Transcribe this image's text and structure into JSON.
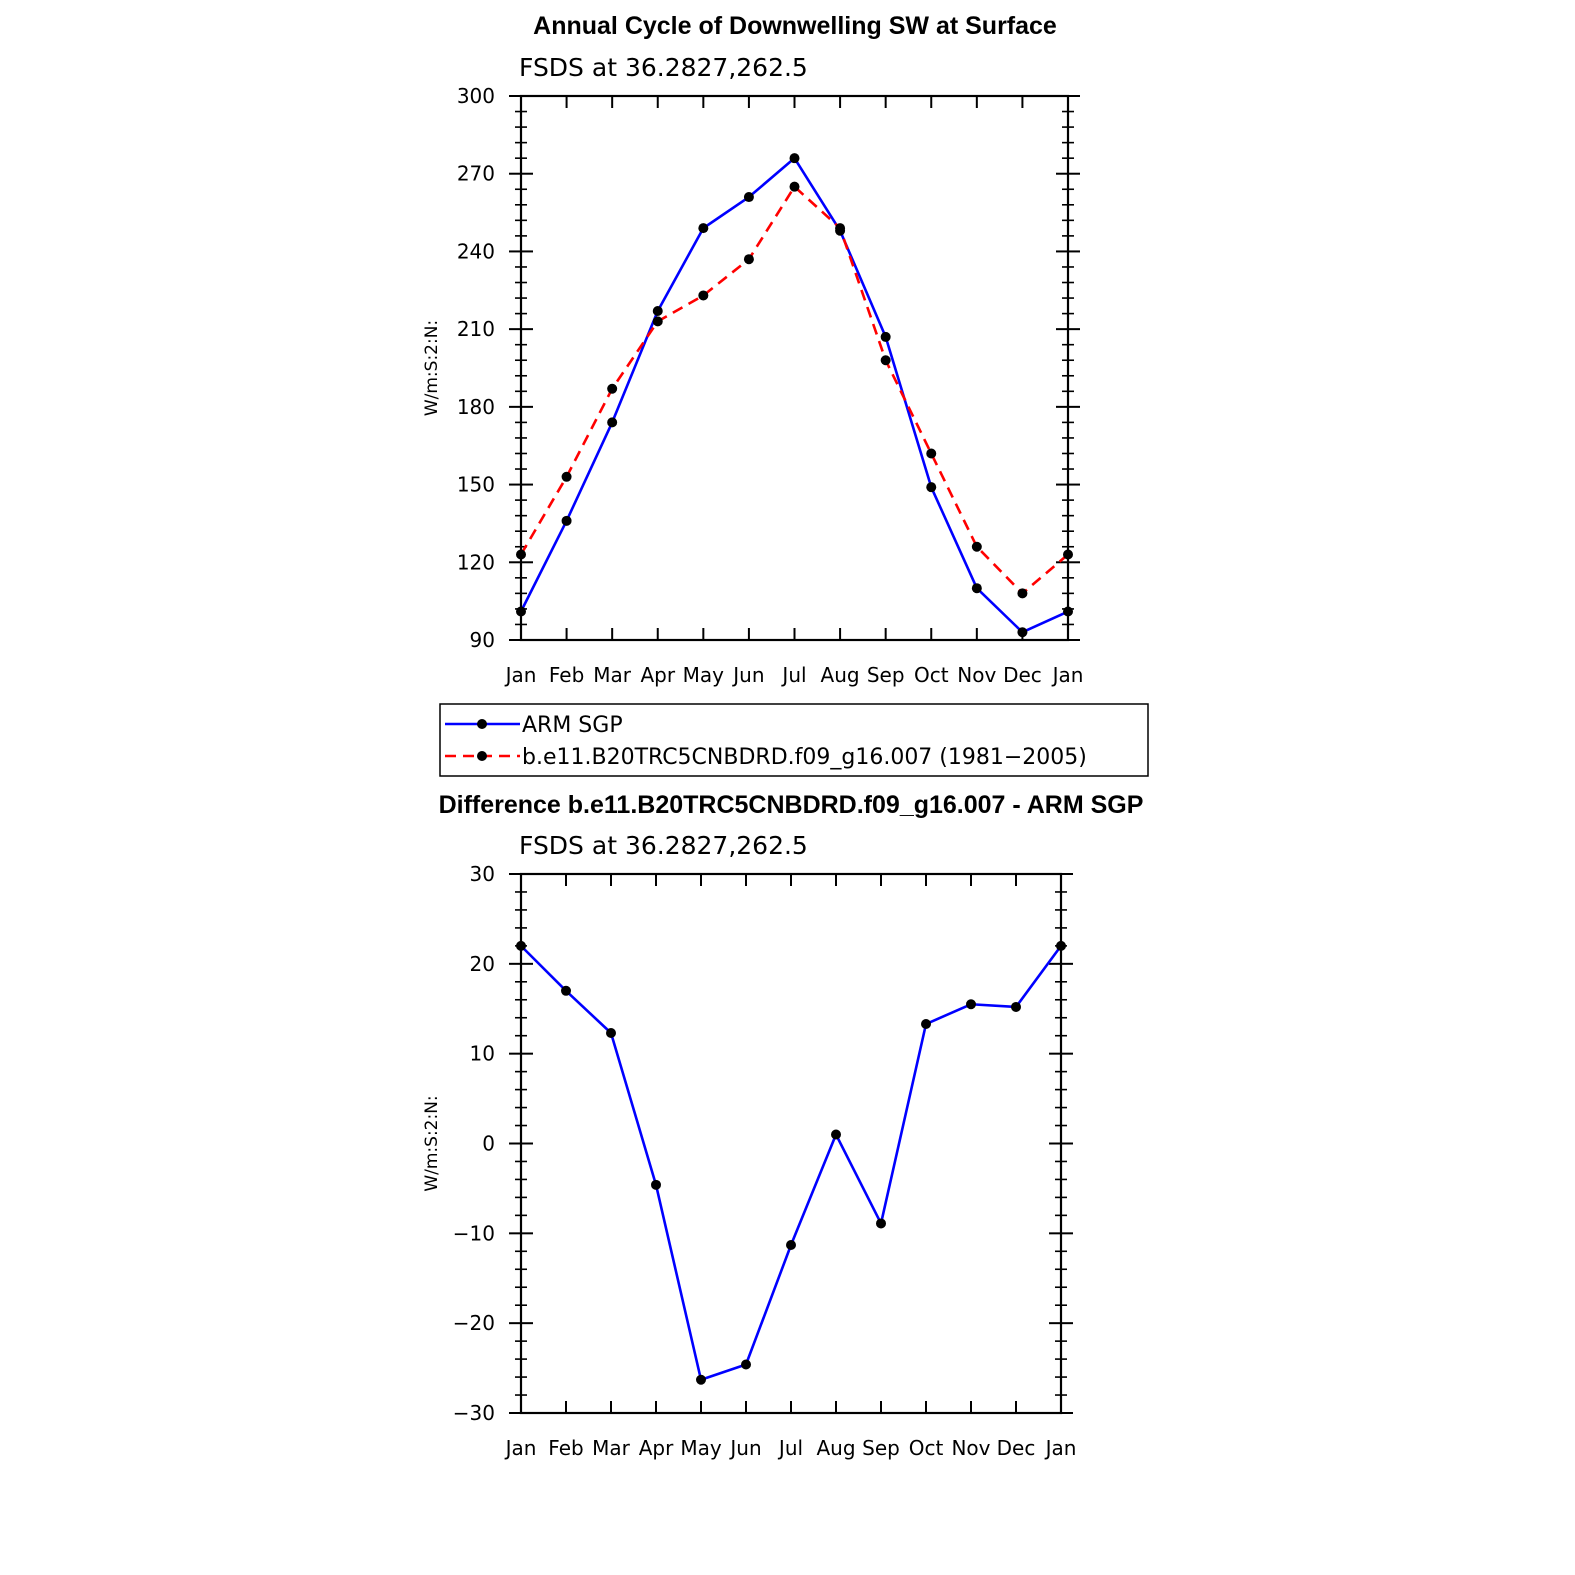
{
  "chart_data": [
    {
      "type": "line",
      "title": "Annual Cycle of Downwelling SW at Surface",
      "subtitle": "FSDS at 36.2827,262.5",
      "xlabel": "",
      "ylabel": "W/m:S:2:N:",
      "categories": [
        "Jan",
        "Feb",
        "Mar",
        "Apr",
        "May",
        "Jun",
        "Jul",
        "Aug",
        "Sep",
        "Oct",
        "Nov",
        "Dec",
        "Jan"
      ],
      "ylim": [
        90,
        300
      ],
      "yticks": [
        90,
        120,
        150,
        180,
        210,
        240,
        270,
        300
      ],
      "series": [
        {
          "name": "ARM SGP",
          "color": "#0000ff",
          "dash": "solid",
          "values": [
            101,
            136,
            174,
            217,
            249,
            261,
            276,
            248,
            207,
            149,
            110,
            93,
            101
          ]
        },
        {
          "name": "b.e11.B20TRC5CNBDRD.f09_g16.007 (1981−2005)",
          "color": "#ff0000",
          "dash": "dashed",
          "values": [
            123,
            153,
            187,
            213,
            223,
            237,
            265,
            249,
            198,
            162,
            126,
            108,
            123
          ]
        }
      ],
      "legend": "below"
    },
    {
      "type": "line",
      "title": "Difference b.e11.B20TRC5CNBDRD.f09_g16.007 - ARM SGP",
      "subtitle": "FSDS at 36.2827,262.5",
      "xlabel": "",
      "ylabel": "W/m:S:2:N:",
      "categories": [
        "Jan",
        "Feb",
        "Mar",
        "Apr",
        "May",
        "Jun",
        "Jul",
        "Aug",
        "Sep",
        "Oct",
        "Nov",
        "Dec",
        "Jan"
      ],
      "ylim": [
        -30,
        30
      ],
      "yticks": [
        -30,
        -20,
        -10,
        0,
        10,
        20,
        30
      ],
      "ytick_labels": [
        "−30",
        "−20",
        "−10",
        "0",
        "10",
        "20",
        "30"
      ],
      "series": [
        {
          "color": "#0000ff",
          "dash": "solid",
          "values": [
            22,
            17,
            12.3,
            -4.6,
            -26.3,
            -24.6,
            -11.3,
            1,
            -8.9,
            13.3,
            15.5,
            15.2,
            22
          ]
        }
      ]
    }
  ]
}
